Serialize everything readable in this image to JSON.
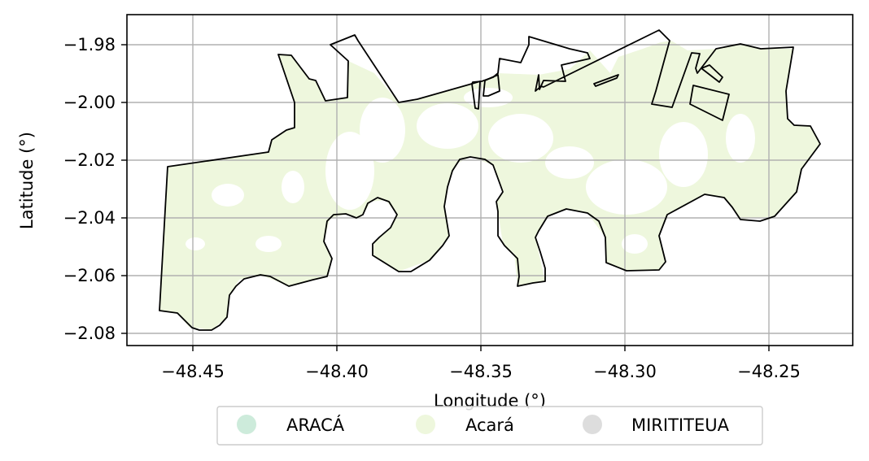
{
  "chart_data": {
    "type": "map",
    "xlabel": "Longitude (°)",
    "ylabel": "Latitude (°)",
    "xlim": [
      -48.4718,
      -48.2182
    ],
    "ylim": [
      -2.0847,
      -1.9693
    ],
    "xticks": [
      -48.45,
      -48.4,
      -48.35,
      -48.3,
      -48.25
    ],
    "yticks": [
      -1.98,
      -2.0,
      -2.02,
      -2.04,
      -2.06,
      -2.08
    ],
    "xtick_labels": [
      "−48.45",
      "−48.40",
      "−48.35",
      "−48.30",
      "−48.25"
    ],
    "ytick_labels": [
      "−1.98",
      "−2.00",
      "−2.02",
      "−2.04",
      "−2.06",
      "−2.08"
    ],
    "grid": true,
    "legend_placement": "bottom-center, below axes",
    "legend": [
      {
        "label": "ARACÁ",
        "color": "#cdebdb"
      },
      {
        "label": "Acará",
        "color": "#eef7dd"
      },
      {
        "label": "MIRITITEUA",
        "color": "#dddddd"
      }
    ],
    "colors": {
      "boundary": "#000000",
      "fill": "#eef7dd",
      "grid": "#b0b0b0"
    }
  }
}
